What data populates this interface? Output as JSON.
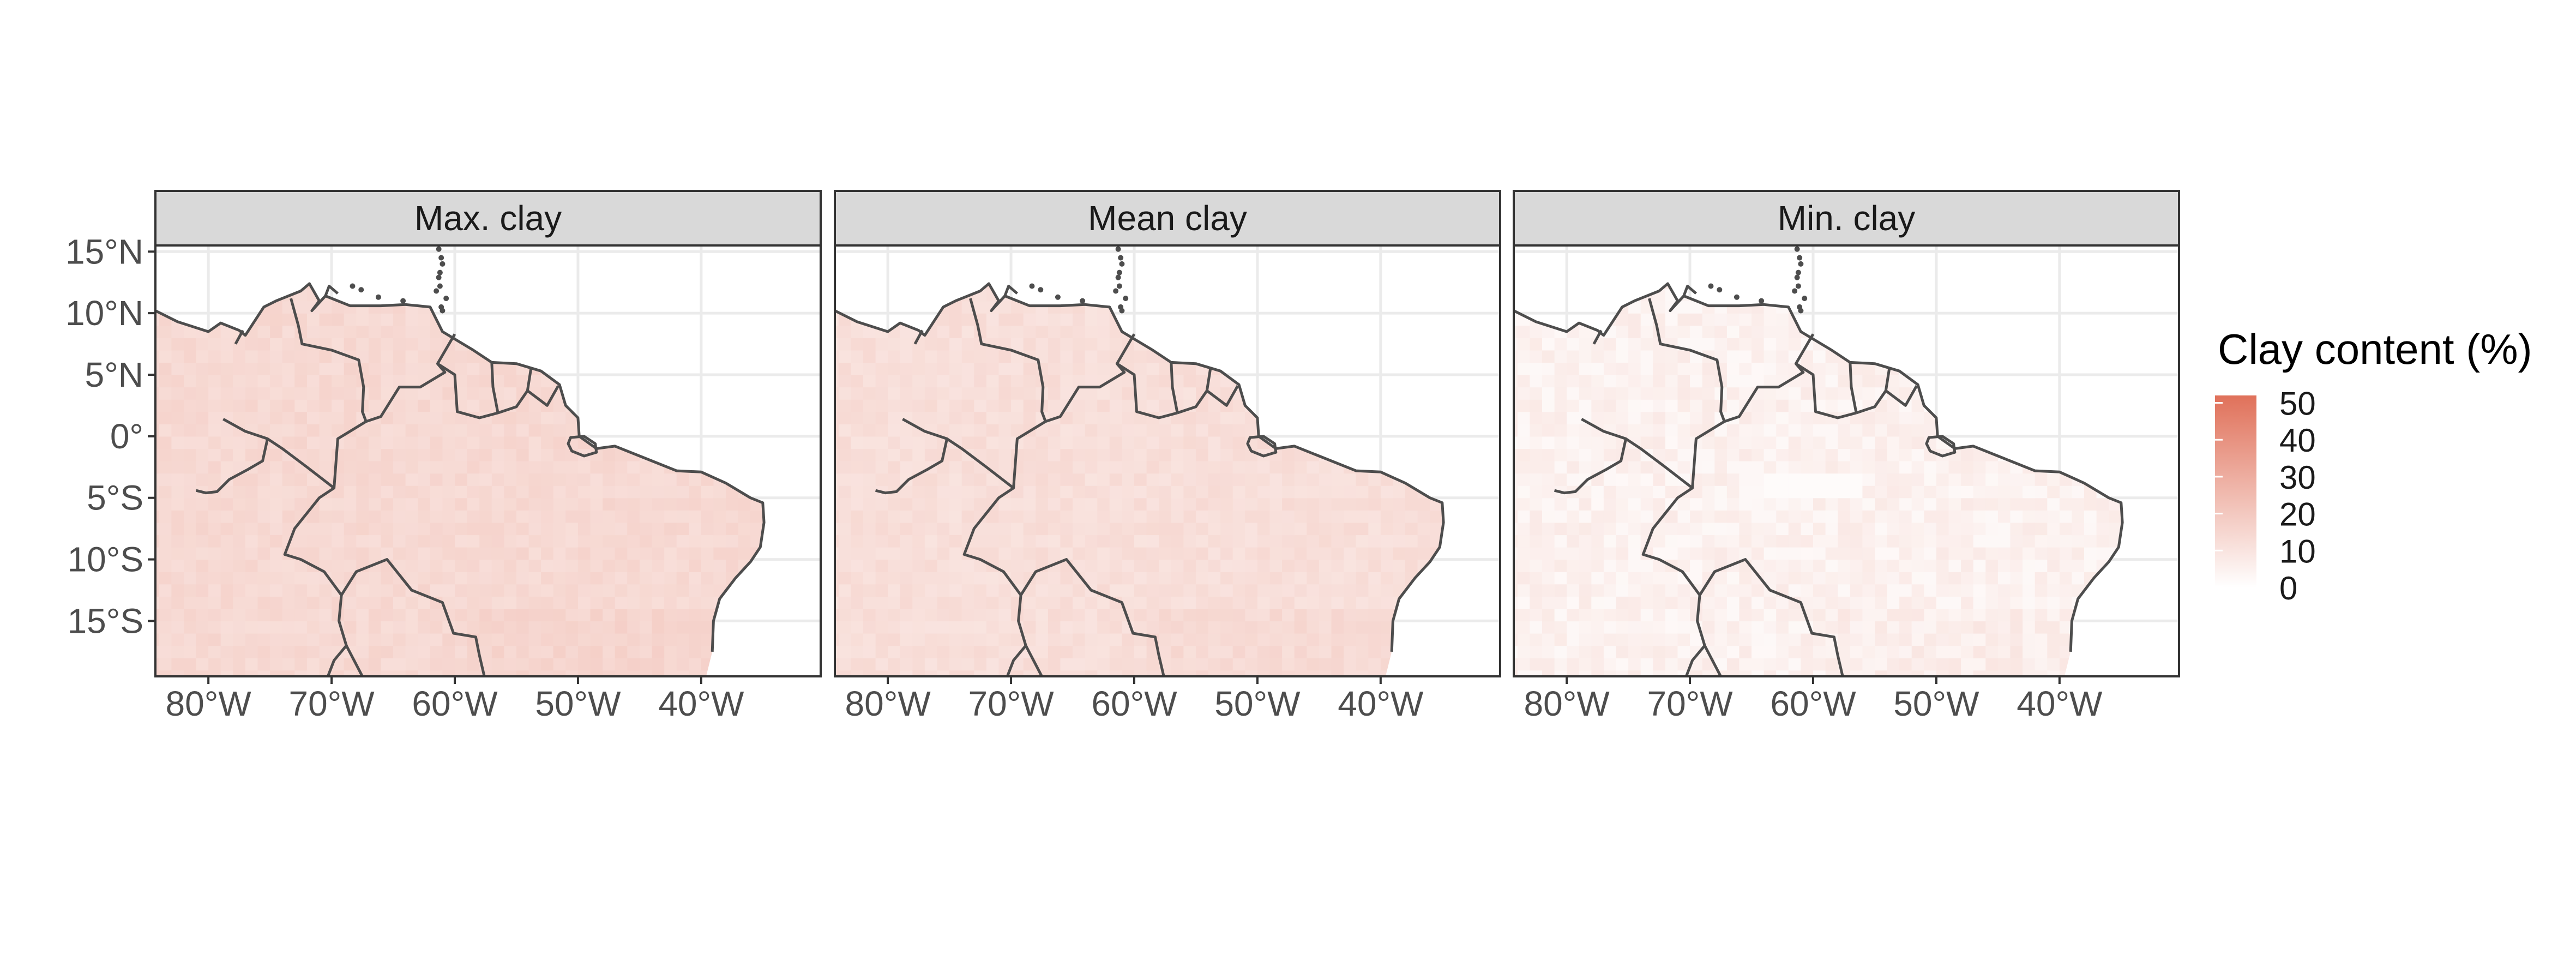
{
  "panels": [
    {
      "title": "Max. clay",
      "key": "max"
    },
    {
      "title": "Mean clay",
      "key": "mean"
    },
    {
      "title": "Min. clay",
      "key": "min"
    }
  ],
  "axes": {
    "x_ticks": [
      {
        "value": -80,
        "label": "80°W"
      },
      {
        "value": -70,
        "label": "70°W"
      },
      {
        "value": -60,
        "label": "60°W"
      },
      {
        "value": -50,
        "label": "50°W"
      },
      {
        "value": -40,
        "label": "40°W"
      }
    ],
    "y_ticks": [
      {
        "value": 15,
        "label": "15°N"
      },
      {
        "value": 10,
        "label": "10°N"
      },
      {
        "value": 5,
        "label": "5°N"
      },
      {
        "value": 0,
        "label": "0°"
      },
      {
        "value": -5,
        "label": "5°S"
      },
      {
        "value": -10,
        "label": "10°S"
      },
      {
        "value": -15,
        "label": "15°S"
      }
    ],
    "lon_range": [
      -84.3,
      -30.3
    ],
    "lat_range": [
      -19.5,
      15.5
    ],
    "grid": true
  },
  "legend": {
    "title": "Clay content (%)",
    "position": "right",
    "ticks": [
      {
        "value": 50,
        "label": "50"
      },
      {
        "value": 40,
        "label": "40"
      },
      {
        "value": 30,
        "label": "30"
      },
      {
        "value": 20,
        "label": "20"
      },
      {
        "value": 10,
        "label": "10"
      },
      {
        "value": 0,
        "label": "0"
      }
    ],
    "range": [
      0,
      52
    ],
    "color_low": "#ffffff",
    "color_high": "#e0715a"
  },
  "colors": {
    "panel_border": "#333333",
    "strip_fill": "#d9d9d9",
    "gridline": "#ebebeb",
    "coastline": "#4d4d4d",
    "tick_text": "#4d4d4d"
  },
  "chart_data": {
    "type": "heatmap",
    "variable": "Clay content (%)",
    "cell_size_deg": 1,
    "panel_levels": {
      "max": 14,
      "mean": 12,
      "min": 6
    }
  }
}
